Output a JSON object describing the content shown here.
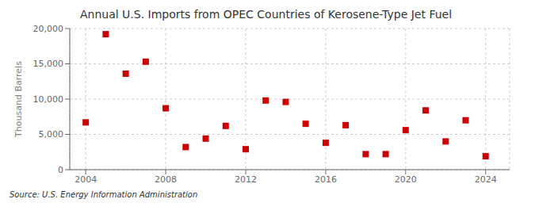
{
  "chart_data": {
    "type": "scatter",
    "title": "Annual U.S. Imports from OPEC Countries of Kerosene-Type Jet Fuel",
    "ylabel": "Thousand Barrels",
    "annotations": [
      "Source: U.S. Energy Information Administration"
    ],
    "x": [
      2004,
      2005,
      2006,
      2007,
      2008,
      2009,
      2010,
      2011,
      2012,
      2013,
      2014,
      2015,
      2016,
      2017,
      2018,
      2019,
      2020,
      2021,
      2022,
      2023,
      2024
    ],
    "values": [
      6700,
      19200,
      13600,
      15300,
      8700,
      3200,
      4400,
      6200,
      2900,
      9800,
      9600,
      6500,
      3800,
      6300,
      2200,
      2200,
      5600,
      8400,
      4000,
      7000,
      1900
    ],
    "color": "#cc0000",
    "marker": "square",
    "xlim": [
      2003.2,
      2025.2
    ],
    "xticks": [
      2004,
      2008,
      2012,
      2016,
      2020,
      2024
    ],
    "ylim": [
      0,
      20000
    ],
    "yticks": [
      0,
      {
        "value": 5000,
        "label": "5,000"
      },
      {
        "value": 10000,
        "label": "10,000"
      },
      {
        "value": 15000,
        "label": "15,000"
      },
      {
        "value": 20000,
        "label": "20,000"
      }
    ],
    "grid": true
  }
}
